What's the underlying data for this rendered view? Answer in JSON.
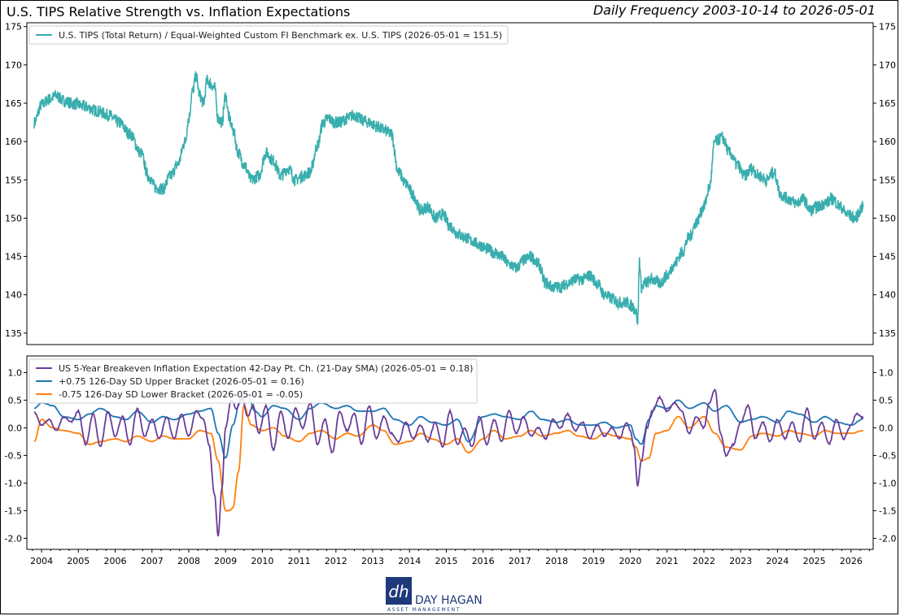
{
  "header": {
    "title": "U.S. TIPS Relative Strength vs. Inflation Expectations",
    "frequency": "Daily Frequency 2003-10-14 to 2026-05-01"
  },
  "colors": {
    "tips": "#3aaeae",
    "breakeven": "#6a3d9a",
    "upper": "#1f77b4",
    "lower": "#ff7f0e"
  },
  "logo": {
    "name": "DAY HAGAN",
    "sub": "ASSET MANAGEMENT",
    "mark": "dh"
  },
  "chart_data": [
    {
      "type": "line",
      "title": "",
      "xlabel": "",
      "ylabel": "",
      "ylim": [
        133.5,
        175.5
      ],
      "yticks": [
        135,
        140,
        145,
        150,
        155,
        160,
        165,
        170,
        175
      ],
      "y_tick_sides": "left-and-right",
      "legend_position": "top-left",
      "grid": false,
      "series": [
        {
          "name": "U.S. TIPS (Total Return) / Equal-Weighted Custom FI Benchmark ex. U.S. TIPS (2026-05-01 = 151.5)",
          "color": "#3aaeae",
          "x": [
            2003.8,
            2004.0,
            2004.2,
            2004.4,
            2004.6,
            2004.9,
            2005.2,
            2005.5,
            2005.8,
            2006.1,
            2006.4,
            2006.7,
            2006.9,
            2007.1,
            2007.3,
            2007.5,
            2007.7,
            2007.9,
            2008.0,
            2008.1,
            2008.2,
            2008.3,
            2008.4,
            2008.5,
            2008.6,
            2008.7,
            2008.8,
            2008.9,
            2009.0,
            2009.1,
            2009.2,
            2009.35,
            2009.5,
            2009.7,
            2009.9,
            2010.1,
            2010.3,
            2010.5,
            2010.7,
            2010.9,
            2011.1,
            2011.3,
            2011.5,
            2011.65,
            2011.8,
            2011.95,
            2012.1,
            2012.3,
            2012.5,
            2012.7,
            2012.9,
            2013.1,
            2013.3,
            2013.5,
            2013.7,
            2013.9,
            2014.1,
            2014.3,
            2014.5,
            2014.7,
            2014.9,
            2015.1,
            2015.3,
            2015.5,
            2015.7,
            2015.9,
            2016.1,
            2016.3,
            2016.5,
            2016.7,
            2016.9,
            2017.1,
            2017.3,
            2017.5,
            2017.7,
            2017.9,
            2018.1,
            2018.3,
            2018.5,
            2018.7,
            2018.9,
            2019.1,
            2019.3,
            2019.5,
            2019.7,
            2019.9,
            2020.05,
            2020.15,
            2020.2,
            2020.25,
            2020.3,
            2020.4,
            2020.6,
            2020.8,
            2021.0,
            2021.2,
            2021.4,
            2021.6,
            2021.8,
            2022.0,
            2022.15,
            2022.3,
            2022.5,
            2022.7,
            2022.9,
            2023.1,
            2023.3,
            2023.5,
            2023.7,
            2023.9,
            2024.1,
            2024.3,
            2024.5,
            2024.7,
            2024.9,
            2025.1,
            2025.3,
            2025.5,
            2025.7,
            2025.9,
            2026.1,
            2026.33
          ],
          "values": [
            162.5,
            164.8,
            165.5,
            166.0,
            165.3,
            164.9,
            164.5,
            164.0,
            163.5,
            162.5,
            161.0,
            158.5,
            155.5,
            154.0,
            153.8,
            155.5,
            157.0,
            160.0,
            163.0,
            166.5,
            168.5,
            166.0,
            165.0,
            168.0,
            167.5,
            167.0,
            163.0,
            162.5,
            166.0,
            163.0,
            161.5,
            158.5,
            157.0,
            155.0,
            155.5,
            158.5,
            157.5,
            155.5,
            156.5,
            155.0,
            155.5,
            156.0,
            159.5,
            162.5,
            163.0,
            162.5,
            162.5,
            163.0,
            163.5,
            162.8,
            162.5,
            162.0,
            161.5,
            161.0,
            156.0,
            154.5,
            153.0,
            151.0,
            151.5,
            150.0,
            150.5,
            149.0,
            148.0,
            147.5,
            147.0,
            146.5,
            146.0,
            145.5,
            145.0,
            144.0,
            143.5,
            144.5,
            145.0,
            144.0,
            141.5,
            141.0,
            141.0,
            141.5,
            142.0,
            142.0,
            142.5,
            141.5,
            140.0,
            139.5,
            139.0,
            139.0,
            138.5,
            138.0,
            136.5,
            144.5,
            141.0,
            141.5,
            142.0,
            141.5,
            142.5,
            144.0,
            145.5,
            147.5,
            149.5,
            151.5,
            154.0,
            160.0,
            160.5,
            158.5,
            157.0,
            155.5,
            156.5,
            155.5,
            155.0,
            156.0,
            153.0,
            152.5,
            152.0,
            152.5,
            151.0,
            151.5,
            152.0,
            152.5,
            151.5,
            150.5,
            150.0,
            151.5
          ]
        }
      ]
    },
    {
      "type": "line",
      "title": "",
      "xlabel": "",
      "ylabel": "",
      "ylim": [
        -2.2,
        1.3
      ],
      "yticks": [
        -2.0,
        -1.5,
        -1.0,
        -0.5,
        0.0,
        0.5,
        1.0
      ],
      "ytick_labels": [
        "-2.0",
        "-1.5",
        "-1.0",
        "-0.5",
        "0.0",
        "0.5",
        "1.0"
      ],
      "y_tick_sides": "left-and-right",
      "legend_position": "top-left",
      "grid": false,
      "xlim": [
        2003.6,
        2026.6
      ],
      "xticks": [
        2004,
        2005,
        2006,
        2007,
        2008,
        2009,
        2010,
        2011,
        2012,
        2013,
        2014,
        2015,
        2016,
        2017,
        2018,
        2019,
        2020,
        2021,
        2022,
        2023,
        2024,
        2025,
        2026
      ],
      "xtick_labels": [
        "2004",
        "2005",
        "2006",
        "2007",
        "2008",
        "2009",
        "2010",
        "2011",
        "2012",
        "2013",
        "2014",
        "2015",
        "2016",
        "2017",
        "2018",
        "2019",
        "2020",
        "2021",
        "2022",
        "2023",
        "2024",
        "2025",
        "2026"
      ],
      "series": [
        {
          "name": "US 5-Year Breakeven Inflation Expectation 42-Day Pt. Ch. (21-Day SMA) (2026-05-01 = 0.18)",
          "color": "#6a3d9a",
          "x": [
            2003.8,
            2004.0,
            2004.2,
            2004.4,
            2004.6,
            2004.8,
            2005.0,
            2005.2,
            2005.4,
            2005.6,
            2005.8,
            2006.0,
            2006.2,
            2006.4,
            2006.6,
            2006.8,
            2007.0,
            2007.2,
            2007.4,
            2007.6,
            2007.8,
            2008.0,
            2008.2,
            2008.4,
            2008.55,
            2008.7,
            2008.8,
            2008.9,
            2009.0,
            2009.15,
            2009.3,
            2009.45,
            2009.6,
            2009.75,
            2009.9,
            2010.1,
            2010.3,
            2010.5,
            2010.7,
            2010.9,
            2011.1,
            2011.3,
            2011.5,
            2011.7,
            2011.9,
            2012.1,
            2012.3,
            2012.5,
            2012.7,
            2012.9,
            2013.1,
            2013.3,
            2013.5,
            2013.7,
            2013.9,
            2014.1,
            2014.3,
            2014.5,
            2014.7,
            2014.9,
            2015.1,
            2015.3,
            2015.5,
            2015.7,
            2015.9,
            2016.1,
            2016.3,
            2016.5,
            2016.7,
            2016.9,
            2017.1,
            2017.3,
            2017.5,
            2017.7,
            2017.9,
            2018.1,
            2018.3,
            2018.5,
            2018.7,
            2018.9,
            2019.1,
            2019.3,
            2019.5,
            2019.7,
            2019.9,
            2020.0,
            2020.1,
            2020.2,
            2020.3,
            2020.45,
            2020.6,
            2020.8,
            2021.0,
            2021.2,
            2021.4,
            2021.6,
            2021.8,
            2022.0,
            2022.15,
            2022.3,
            2022.45,
            2022.6,
            2022.8,
            2023.0,
            2023.2,
            2023.4,
            2023.6,
            2023.8,
            2024.0,
            2024.2,
            2024.4,
            2024.6,
            2024.8,
            2025.0,
            2025.2,
            2025.4,
            2025.6,
            2025.8,
            2026.0,
            2026.15,
            2026.33
          ],
          "values": [
            0.28,
            0.05,
            0.15,
            -0.05,
            0.2,
            0.1,
            0.3,
            -0.3,
            0.25,
            -0.35,
            0.3,
            -0.15,
            0.2,
            -0.3,
            0.35,
            -0.15,
            0.15,
            -0.2,
            0.2,
            -0.2,
            0.25,
            -0.15,
            0.3,
            0.15,
            -0.3,
            -1.2,
            -1.95,
            -1.1,
            0.0,
            0.5,
            0.35,
            0.55,
            0.2,
            0.4,
            -0.1,
            0.4,
            -0.4,
            0.3,
            -0.2,
            0.35,
            0.0,
            0.45,
            -0.3,
            0.15,
            -0.45,
            0.3,
            -0.05,
            0.25,
            -0.3,
            0.4,
            -0.2,
            0.2,
            -0.1,
            -0.25,
            0.1,
            -0.2,
            0.05,
            -0.25,
            0.1,
            -0.35,
            0.3,
            -0.3,
            0.0,
            -0.35,
            0.2,
            -0.3,
            0.15,
            -0.25,
            0.3,
            -0.1,
            0.2,
            -0.15,
            0.0,
            -0.2,
            0.15,
            0.0,
            0.25,
            -0.05,
            0.1,
            -0.2,
            0.05,
            -0.15,
            0.0,
            -0.2,
            0.1,
            -0.05,
            -0.35,
            -1.05,
            -0.6,
            0.0,
            0.3,
            0.55,
            0.3,
            0.45,
            0.3,
            -0.1,
            0.2,
            0.0,
            0.45,
            0.7,
            -0.1,
            -0.5,
            -0.3,
            0.1,
            0.4,
            -0.2,
            0.1,
            -0.25,
            0.15,
            -0.2,
            0.1,
            -0.25,
            0.35,
            -0.2,
            0.1,
            -0.3,
            0.15,
            -0.2,
            0.05,
            0.25,
            0.18
          ]
        },
        {
          "name": "+0.75 126-Day SD Upper Bracket (2026-05-01 = 0.16)",
          "color": "#1f77b4",
          "x": [
            2003.8,
            2004.0,
            2004.3,
            2004.6,
            2005.0,
            2005.3,
            2005.6,
            2006.0,
            2006.3,
            2006.6,
            2007.0,
            2007.3,
            2007.6,
            2008.0,
            2008.3,
            2008.6,
            2008.8,
            2009.0,
            2009.2,
            2009.4,
            2009.6,
            2009.8,
            2010.0,
            2010.3,
            2010.6,
            2011.0,
            2011.3,
            2011.6,
            2012.0,
            2012.3,
            2012.6,
            2013.0,
            2013.3,
            2013.6,
            2014.0,
            2014.3,
            2014.6,
            2015.0,
            2015.3,
            2015.6,
            2016.0,
            2016.3,
            2016.6,
            2017.0,
            2017.3,
            2017.6,
            2018.0,
            2018.3,
            2018.6,
            2019.0,
            2019.3,
            2019.6,
            2020.0,
            2020.15,
            2020.3,
            2020.5,
            2020.7,
            2021.0,
            2021.3,
            2021.6,
            2022.0,
            2022.3,
            2022.6,
            2023.0,
            2023.3,
            2023.6,
            2024.0,
            2024.3,
            2024.6,
            2025.0,
            2025.3,
            2025.6,
            2026.0,
            2026.33
          ],
          "values": [
            0.35,
            0.45,
            0.4,
            0.2,
            0.15,
            0.25,
            0.35,
            0.2,
            0.15,
            0.3,
            0.1,
            0.2,
            0.15,
            0.25,
            0.3,
            0.35,
            -0.1,
            -0.55,
            0.05,
            0.5,
            0.6,
            0.3,
            0.2,
            0.4,
            0.35,
            0.15,
            0.35,
            0.45,
            0.35,
            0.4,
            0.3,
            0.3,
            0.35,
            0.15,
            0.05,
            0.2,
            0.1,
            0.05,
            0.15,
            -0.25,
            0.2,
            0.25,
            0.2,
            0.15,
            0.3,
            0.15,
            0.1,
            0.15,
            0.05,
            0.05,
            0.1,
            0.0,
            0.05,
            -0.2,
            -0.3,
            0.15,
            0.4,
            0.35,
            0.5,
            0.35,
            0.45,
            0.3,
            0.4,
            0.1,
            0.15,
            0.2,
            0.1,
            0.3,
            0.25,
            0.1,
            0.2,
            0.1,
            0.05,
            0.16
          ]
        },
        {
          "name": "-0.75 126-Day SD Lower Bracket (2026-05-01 = -0.05)",
          "color": "#ff7f0e",
          "x": [
            2003.8,
            2004.0,
            2004.3,
            2004.6,
            2005.0,
            2005.3,
            2005.6,
            2006.0,
            2006.3,
            2006.6,
            2007.0,
            2007.3,
            2007.6,
            2008.0,
            2008.3,
            2008.6,
            2008.8,
            2009.0,
            2009.1,
            2009.2,
            2009.35,
            2009.5,
            2009.7,
            2010.0,
            2010.3,
            2010.6,
            2011.0,
            2011.3,
            2011.6,
            2012.0,
            2012.3,
            2012.6,
            2013.0,
            2013.3,
            2013.6,
            2014.0,
            2014.3,
            2014.6,
            2015.0,
            2015.3,
            2015.6,
            2016.0,
            2016.3,
            2016.6,
            2017.0,
            2017.3,
            2017.6,
            2018.0,
            2018.3,
            2018.6,
            2019.0,
            2019.3,
            2019.6,
            2020.0,
            2020.15,
            2020.3,
            2020.5,
            2020.7,
            2021.0,
            2021.3,
            2021.6,
            2022.0,
            2022.3,
            2022.6,
            2023.0,
            2023.3,
            2023.6,
            2024.0,
            2024.3,
            2024.6,
            2025.0,
            2025.3,
            2025.6,
            2026.0,
            2026.33
          ],
          "values": [
            -0.25,
            0.15,
            0.0,
            -0.05,
            -0.1,
            -0.3,
            -0.25,
            -0.2,
            -0.25,
            -0.15,
            -0.25,
            -0.15,
            -0.2,
            -0.2,
            -0.05,
            -0.1,
            -0.6,
            -1.5,
            -1.5,
            -1.45,
            -0.8,
            0.4,
            0.05,
            -0.05,
            0.0,
            -0.15,
            -0.25,
            -0.1,
            -0.05,
            -0.2,
            -0.1,
            -0.15,
            0.05,
            -0.05,
            -0.3,
            -0.25,
            -0.1,
            -0.2,
            -0.3,
            -0.2,
            -0.45,
            -0.2,
            -0.05,
            -0.2,
            -0.15,
            -0.05,
            -0.15,
            -0.1,
            -0.05,
            -0.15,
            -0.2,
            -0.1,
            -0.15,
            -0.2,
            -0.35,
            -0.6,
            -0.55,
            -0.1,
            -0.05,
            0.2,
            0.0,
            0.2,
            -0.1,
            -0.35,
            -0.4,
            -0.15,
            -0.1,
            -0.15,
            -0.05,
            -0.1,
            -0.15,
            -0.05,
            -0.1,
            -0.1,
            -0.05
          ]
        }
      ]
    }
  ]
}
